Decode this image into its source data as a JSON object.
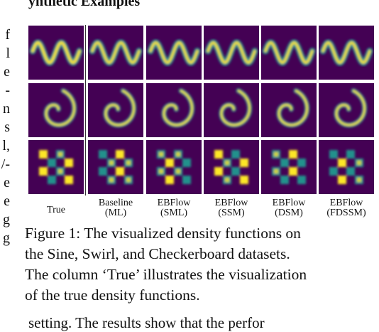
{
  "heading": "ynthetic Examples",
  "left_column_fragments": [
    "f",
    "l",
    "e",
    "-",
    "n",
    "s",
    "l,",
    "/-",
    "e",
    "e",
    "g",
    "g"
  ],
  "figure": {
    "columns": [
      {
        "line1": "True",
        "line2": ""
      },
      {
        "line1": "Baseline",
        "line2": "(ML)"
      },
      {
        "line1": "EBFlow",
        "line2": "(SML)"
      },
      {
        "line1": "EBFlow",
        "line2": "(SSM)"
      },
      {
        "line1": "EBFlow",
        "line2": "(DSM)"
      },
      {
        "line1": "EBFlow",
        "line2": "(FDSSM)"
      }
    ],
    "rows": [
      "sine",
      "swirl",
      "checkerboard"
    ],
    "colors": {
      "background": "#440154",
      "mid": "#21918c",
      "high": "#fde725"
    }
  },
  "caption": "Figure 1: The visualized density functions on\nthe Sine, Swirl, and Checkerboard datasets.\nThe column ‘True’ illustrates the visualization\nof the true density functions.",
  "bottom_text": "setting. The results show that the perfor"
}
